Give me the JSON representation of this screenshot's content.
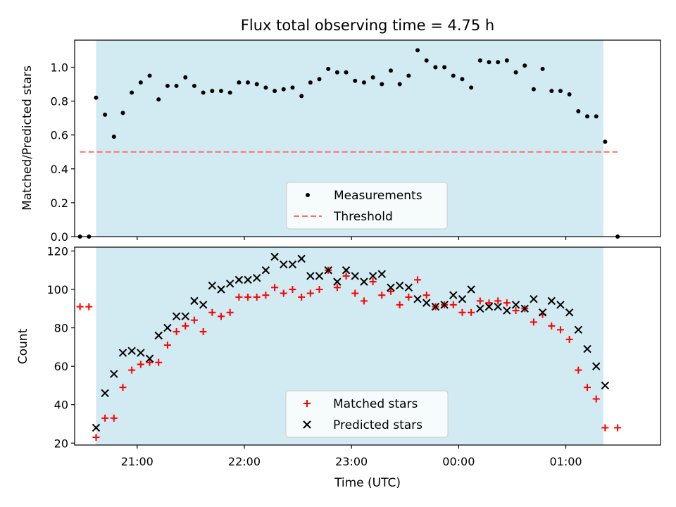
{
  "figure": {
    "title": "Flux total observing time = 4.75 h",
    "xlabel": "Time (UTC)"
  },
  "colors": {
    "shade": "#add8e6",
    "threshold": "#ff6f6f",
    "measurements": "#000000",
    "matched": "#ff0000",
    "predicted": "#000000",
    "axis": "#000000"
  },
  "chart_data": [
    {
      "type": "scatter",
      "panel": "top",
      "ylabel": "Matched/Predicted stars",
      "xlim": [
        "20:25",
        "01:53"
      ],
      "ylim": [
        0,
        1.16
      ],
      "yticks": [
        0.0,
        0.2,
        0.4,
        0.6,
        0.8,
        1.0
      ],
      "ytick_labels": [
        "0.0",
        "0.2",
        "0.4",
        "0.6",
        "0.8",
        "1.0"
      ],
      "observing_window": [
        "20:37",
        "01:21"
      ],
      "legend_position": "lower center",
      "threshold": {
        "name": "Threshold",
        "value": 0.5,
        "x_range": [
          "20:28",
          "01:29"
        ]
      },
      "series": [
        {
          "name": "Measurements",
          "marker": "dot",
          "x": [
            "20:28",
            "20:33",
            "20:37",
            "20:42",
            "20:47",
            "20:52",
            "20:57",
            "21:02",
            "21:07",
            "21:12",
            "21:17",
            "21:22",
            "21:27",
            "21:32",
            "21:37",
            "21:42",
            "21:47",
            "21:52",
            "21:57",
            "22:02",
            "22:07",
            "22:12",
            "22:17",
            "22:22",
            "22:27",
            "22:32",
            "22:37",
            "22:42",
            "22:47",
            "22:52",
            "22:57",
            "23:02",
            "23:07",
            "23:12",
            "23:17",
            "23:22",
            "23:27",
            "23:32",
            "23:37",
            "23:42",
            "23:47",
            "23:52",
            "23:57",
            "00:02",
            "00:07",
            "00:12",
            "00:17",
            "00:22",
            "00:27",
            "00:32",
            "00:37",
            "00:42",
            "00:47",
            "00:52",
            "00:57",
            "01:02",
            "01:07",
            "01:12",
            "01:17",
            "01:22",
            "01:29"
          ],
          "y": [
            0.0,
            0.0,
            0.82,
            0.72,
            0.59,
            0.73,
            0.85,
            0.91,
            0.95,
            0.81,
            0.89,
            0.89,
            0.94,
            0.89,
            0.85,
            0.86,
            0.86,
            0.85,
            0.91,
            0.91,
            0.9,
            0.88,
            0.86,
            0.87,
            0.88,
            0.83,
            0.91,
            0.93,
            0.99,
            0.97,
            0.97,
            0.92,
            0.91,
            0.94,
            0.9,
            0.98,
            0.9,
            0.95,
            1.1,
            1.04,
            1.0,
            1.0,
            0.95,
            0.93,
            0.88,
            1.04,
            1.03,
            1.03,
            1.04,
            0.97,
            1.01,
            0.87,
            0.99,
            0.86,
            0.86,
            0.84,
            0.74,
            0.71,
            0.71,
            0.56,
            0.0
          ]
        }
      ]
    },
    {
      "type": "scatter",
      "panel": "bottom",
      "ylabel": "Count",
      "xlabel": "Time (UTC)",
      "xlim": [
        "20:25",
        "01:53"
      ],
      "ylim": [
        19,
        122
      ],
      "yticks": [
        20,
        40,
        60,
        80,
        100,
        120
      ],
      "ytick_labels": [
        "20",
        "40",
        "60",
        "80",
        "100",
        "120"
      ],
      "xticks": [
        "21:00",
        "22:00",
        "23:00",
        "00:00",
        "01:00"
      ],
      "xtick_labels": [
        "21:00",
        "22:00",
        "23:00",
        "00:00",
        "01:00"
      ],
      "observing_window": [
        "20:37",
        "01:21"
      ],
      "legend_position": "lower center",
      "series": [
        {
          "name": "Matched stars",
          "marker": "plus",
          "x": [
            "20:28",
            "20:33",
            "20:37",
            "20:42",
            "20:47",
            "20:52",
            "20:57",
            "21:02",
            "21:07",
            "21:12",
            "21:17",
            "21:22",
            "21:27",
            "21:32",
            "21:37",
            "21:42",
            "21:47",
            "21:52",
            "21:57",
            "22:02",
            "22:07",
            "22:12",
            "22:17",
            "22:22",
            "22:27",
            "22:32",
            "22:37",
            "22:42",
            "22:47",
            "22:52",
            "22:57",
            "23:02",
            "23:07",
            "23:12",
            "23:17",
            "23:22",
            "23:27",
            "23:32",
            "23:37",
            "23:42",
            "23:47",
            "23:52",
            "23:57",
            "00:02",
            "00:07",
            "00:12",
            "00:17",
            "00:22",
            "00:27",
            "00:32",
            "00:37",
            "00:42",
            "00:47",
            "00:52",
            "00:57",
            "01:02",
            "01:07",
            "01:12",
            "01:17",
            "01:22",
            "01:29"
          ],
          "y": [
            91,
            91,
            23,
            33,
            33,
            49,
            58,
            61,
            62,
            62,
            71,
            78,
            81,
            84,
            78,
            88,
            86,
            88,
            96,
            96,
            96,
            97,
            101,
            98,
            100,
            96,
            98,
            100,
            110,
            101,
            107,
            98,
            94,
            104,
            97,
            99,
            92,
            96,
            105,
            97,
            91,
            92,
            92,
            88,
            88,
            94,
            93,
            94,
            93,
            89,
            90,
            83,
            87,
            81,
            79,
            74,
            58,
            49,
            43,
            28,
            28
          ]
        },
        {
          "name": "Predicted stars",
          "marker": "x",
          "x": [
            "20:37",
            "20:42",
            "20:47",
            "20:52",
            "20:57",
            "21:02",
            "21:07",
            "21:12",
            "21:17",
            "21:22",
            "21:27",
            "21:32",
            "21:37",
            "21:42",
            "21:47",
            "21:52",
            "21:57",
            "22:02",
            "22:07",
            "22:12",
            "22:17",
            "22:22",
            "22:27",
            "22:32",
            "22:37",
            "22:42",
            "22:47",
            "22:52",
            "22:57",
            "23:02",
            "23:07",
            "23:12",
            "23:17",
            "23:22",
            "23:27",
            "23:32",
            "23:37",
            "23:42",
            "23:47",
            "23:52",
            "23:57",
            "00:02",
            "00:07",
            "00:12",
            "00:17",
            "00:22",
            "00:27",
            "00:32",
            "00:37",
            "00:42",
            "00:47",
            "00:52",
            "00:57",
            "01:02",
            "01:07",
            "01:12",
            "01:17",
            "01:22"
          ],
          "y": [
            28,
            46,
            56,
            67,
            68,
            67,
            64,
            76,
            80,
            86,
            86,
            94,
            92,
            102,
            100,
            103,
            105,
            105,
            106,
            110,
            117,
            113,
            113,
            116,
            107,
            107,
            110,
            104,
            110,
            107,
            104,
            107,
            108,
            101,
            102,
            101,
            95,
            93,
            91,
            92,
            97,
            95,
            100,
            90,
            91,
            91,
            89,
            92,
            90,
            95,
            88,
            94,
            92,
            88,
            79,
            69,
            60,
            50
          ]
        }
      ]
    }
  ]
}
